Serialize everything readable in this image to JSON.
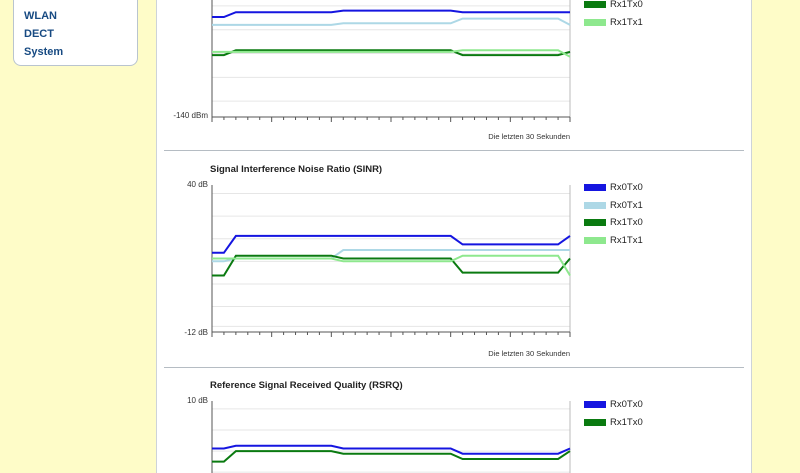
{
  "sidebar": {
    "items": [
      {
        "label": "WLAN"
      },
      {
        "label": "DECT"
      },
      {
        "label": "System"
      }
    ]
  },
  "panels": [
    {
      "id": "rsrp",
      "title": "",
      "y_min_label": "-140 dBm",
      "y_max_label": "",
      "caption": "Die letzten 30 Sekunden",
      "legend": [
        {
          "name": "Rx1Tx0",
          "color": "#0a7a10"
        },
        {
          "name": "Rx1Tx1",
          "color": "#8ee88e"
        }
      ]
    },
    {
      "id": "sinr",
      "title": "Signal Interference Noise Ratio (SINR)",
      "y_min_label": "-12 dB",
      "y_max_label": "40 dB",
      "caption": "Die letzten 30 Sekunden",
      "legend": [
        {
          "name": "Rx0Tx0",
          "color": "#1515e0"
        },
        {
          "name": "Rx0Tx1",
          "color": "#add8e6"
        },
        {
          "name": "Rx1Tx0",
          "color": "#0a7a10"
        },
        {
          "name": "Rx1Tx1",
          "color": "#8ee88e"
        }
      ]
    },
    {
      "id": "rsrq",
      "title": "Reference Signal Received Quality (RSRQ)",
      "y_min_label": "",
      "y_max_label": "10 dB",
      "caption": "",
      "legend": [
        {
          "name": "Rx0Tx0",
          "color": "#1515e0"
        },
        {
          "name": "Rx1Tx0",
          "color": "#0a7a10"
        }
      ]
    }
  ],
  "chart_data": [
    {
      "type": "line",
      "title": "",
      "ylabel": "",
      "xlabel": "Die letzten 30 Sekunden",
      "ylim_bottom_label": "-140 dBm",
      "x": [
        0,
        1,
        2,
        3,
        4,
        5,
        6,
        7,
        8,
        9,
        10,
        11,
        12,
        13,
        14,
        15,
        16,
        17,
        18,
        19,
        20,
        21,
        22,
        23,
        24,
        25,
        26,
        27,
        28,
        29,
        30
      ],
      "series": [
        {
          "color": "#1515e0",
          "values": [
            -77,
            -77,
            -74,
            -74,
            -74,
            -74,
            -74,
            -74,
            -74,
            -74,
            -74,
            -73,
            -73,
            -73,
            -73,
            -73,
            -73,
            -73,
            -73,
            -73,
            -73,
            -74,
            -74,
            -74,
            -74,
            -74,
            -74,
            -74,
            -74,
            -74,
            -74
          ]
        },
        {
          "color": "#add8e6",
          "values": [
            -82,
            -82,
            -82,
            -82,
            -82,
            -82,
            -82,
            -82,
            -82,
            -82,
            -82,
            -81,
            -81,
            -81,
            -81,
            -81,
            -81,
            -81,
            -81,
            -81,
            -81,
            -78,
            -78,
            -78,
            -78,
            -78,
            -78,
            -78,
            -78,
            -78,
            -82
          ]
        },
        {
          "name": "Rx1Tx0",
          "color": "#0a7a10",
          "values": [
            -101,
            -101,
            -98,
            -98,
            -98,
            -98,
            -98,
            -98,
            -98,
            -98,
            -98,
            -98,
            -98,
            -98,
            -98,
            -98,
            -98,
            -98,
            -98,
            -98,
            -98,
            -101,
            -101,
            -101,
            -101,
            -101,
            -101,
            -101,
            -101,
            -101,
            -99
          ]
        },
        {
          "name": "Rx1Tx1",
          "color": "#8ee88e",
          "values": [
            -99,
            -99,
            -99,
            -99,
            -99,
            -99,
            -99,
            -99,
            -99,
            -99,
            -99,
            -99,
            -99,
            -99,
            -99,
            -99,
            -99,
            -99,
            -99,
            -99,
            -99,
            -98,
            -98,
            -98,
            -98,
            -98,
            -98,
            -98,
            -98,
            -98,
            -102
          ]
        }
      ]
    },
    {
      "type": "line",
      "title": "Signal Interference Noise Ratio (SINR)",
      "ylim": [
        -12,
        40
      ],
      "ylim_labels": [
        "-12 dB",
        "40 dB"
      ],
      "xlabel": "Die letzten 30 Sekunden",
      "x": [
        0,
        1,
        2,
        3,
        4,
        5,
        6,
        7,
        8,
        9,
        10,
        11,
        12,
        13,
        14,
        15,
        16,
        17,
        18,
        19,
        20,
        21,
        22,
        23,
        24,
        25,
        26,
        27,
        28,
        29,
        30
      ],
      "series": [
        {
          "name": "Rx0Tx0",
          "color": "#1515e0",
          "values": [
            16,
            16,
            22,
            22,
            22,
            22,
            22,
            22,
            22,
            22,
            22,
            22,
            22,
            22,
            22,
            22,
            22,
            22,
            22,
            22,
            22,
            19,
            19,
            19,
            19,
            19,
            19,
            19,
            19,
            19,
            22
          ]
        },
        {
          "name": "Rx0Tx1",
          "color": "#add8e6",
          "values": [
            13,
            13,
            14,
            14,
            14,
            14,
            14,
            14,
            14,
            14,
            14,
            17,
            17,
            17,
            17,
            17,
            17,
            17,
            17,
            17,
            17,
            17,
            17,
            17,
            17,
            17,
            17,
            17,
            17,
            17,
            17
          ]
        },
        {
          "name": "Rx1Tx0",
          "color": "#0a7a10",
          "values": [
            8,
            8,
            15,
            15,
            15,
            15,
            15,
            15,
            15,
            15,
            15,
            14,
            14,
            14,
            14,
            14,
            14,
            14,
            14,
            14,
            14,
            9,
            9,
            9,
            9,
            9,
            9,
            9,
            9,
            9,
            14
          ]
        },
        {
          "name": "Rx1Tx1",
          "color": "#8ee88e",
          "values": [
            14,
            14,
            14,
            14,
            14,
            14,
            14,
            14,
            14,
            14,
            14,
            13,
            13,
            13,
            13,
            13,
            13,
            13,
            13,
            13,
            13,
            15,
            15,
            15,
            15,
            15,
            15,
            15,
            15,
            15,
            8
          ]
        }
      ]
    },
    {
      "type": "line",
      "title": "Reference Signal Received Quality (RSRQ)",
      "ylim_top_label": "10 dB",
      "x": [
        0,
        1,
        2,
        3,
        4,
        5,
        6,
        7,
        8,
        9,
        10,
        11,
        12,
        13,
        14,
        15,
        16,
        17,
        18,
        19,
        20,
        21,
        22,
        23,
        24,
        25,
        26,
        27,
        28,
        29,
        30
      ],
      "series": [
        {
          "name": "Rx0Tx0",
          "color": "#1515e0",
          "values": [
            -8,
            -8,
            -7,
            -7,
            -7,
            -7,
            -7,
            -7,
            -7,
            -7,
            -7,
            -8,
            -8,
            -8,
            -8,
            -8,
            -8,
            -8,
            -8,
            -8,
            -8,
            -10,
            -10,
            -10,
            -10,
            -10,
            -10,
            -10,
            -10,
            -10,
            -8
          ]
        },
        {
          "name": "Rx1Tx0",
          "color": "#0a7a10",
          "values": [
            -13,
            -13,
            -9,
            -9,
            -9,
            -9,
            -9,
            -9,
            -9,
            -9,
            -9,
            -10,
            -10,
            -10,
            -10,
            -10,
            -10,
            -10,
            -10,
            -10,
            -10,
            -12,
            -12,
            -12,
            -12,
            -12,
            -12,
            -12,
            -12,
            -12,
            -9
          ]
        }
      ]
    }
  ]
}
